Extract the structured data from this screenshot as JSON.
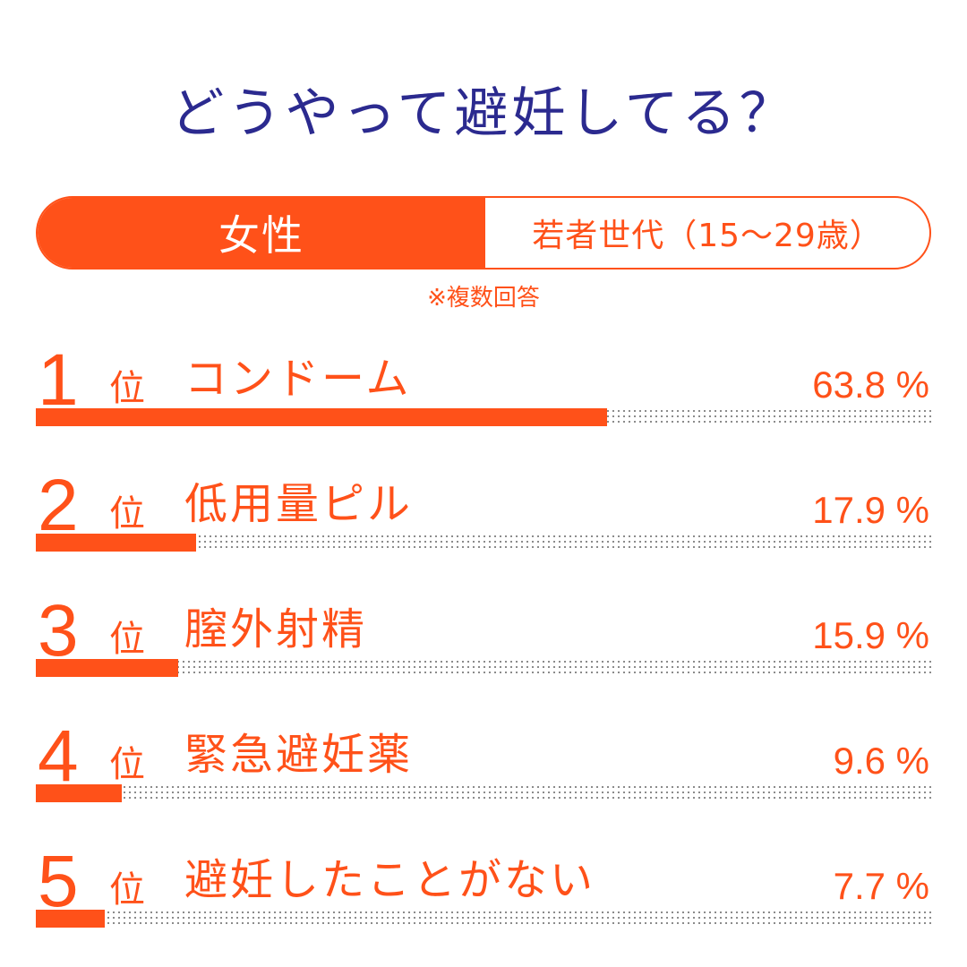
{
  "title": "どうやって避妊してる？",
  "tabs": {
    "left": "女性",
    "right": "若者世代（15～29歳）"
  },
  "note": "※複数回答",
  "colors": {
    "accent": "#ff5119",
    "title": "#2b2a8f",
    "dots": "#6e6e6e"
  },
  "rank_unit": "位",
  "chart_data": {
    "type": "bar",
    "orientation": "horizontal",
    "title": "どうやって避妊してる？",
    "xlim": [
      0,
      100
    ],
    "unit": "%",
    "categories": [
      "コンドーム",
      "低用量ピル",
      "膣外射精",
      "緊急避妊薬",
      "避妊したことがない"
    ],
    "values": [
      63.8,
      17.9,
      15.9,
      9.6,
      7.7
    ],
    "items": [
      {
        "rank": "1",
        "label": "コンドーム",
        "value": 63.8,
        "value_text": "63.8 %"
      },
      {
        "rank": "2",
        "label": "低用量ピル",
        "value": 17.9,
        "value_text": "17.9 %"
      },
      {
        "rank": "3",
        "label": "膣外射精",
        "value": 15.9,
        "value_text": "15.9 %"
      },
      {
        "rank": "4",
        "label": "緊急避妊薬",
        "value": 9.6,
        "value_text": "9.6 %"
      },
      {
        "rank": "5",
        "label": "避妊したことがない",
        "value": 7.7,
        "value_text": "7.7 %"
      }
    ]
  }
}
